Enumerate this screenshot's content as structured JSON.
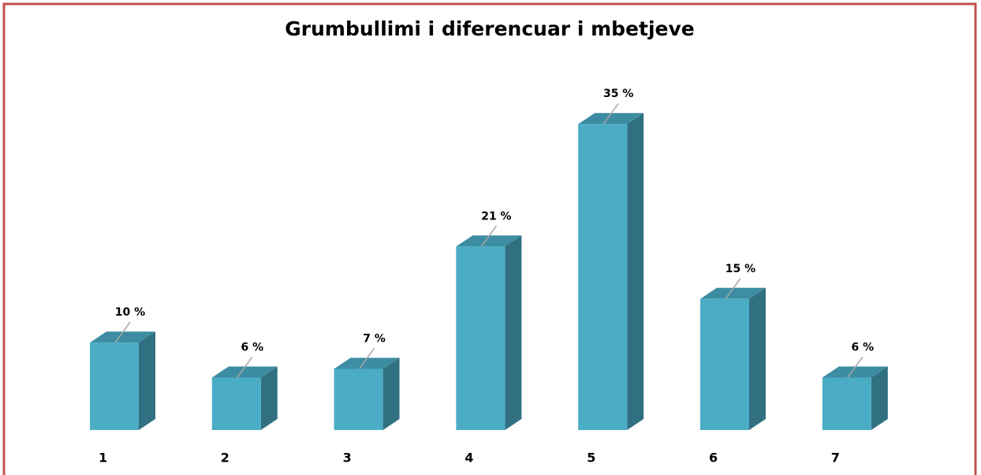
{
  "chart_data": {
    "type": "bar3d",
    "title": "Grumbullimi i diferencuar i mbetjeve",
    "categories": [
      "1",
      "2",
      "3",
      "4",
      "5",
      "6",
      "7"
    ],
    "values": [
      10,
      6,
      7,
      21,
      35,
      15,
      6
    ],
    "value_labels": [
      "10 %",
      "6 %",
      "7 %",
      "21 %",
      "35 %",
      "15 %",
      "6 %"
    ],
    "color": "#4bacc6"
  }
}
